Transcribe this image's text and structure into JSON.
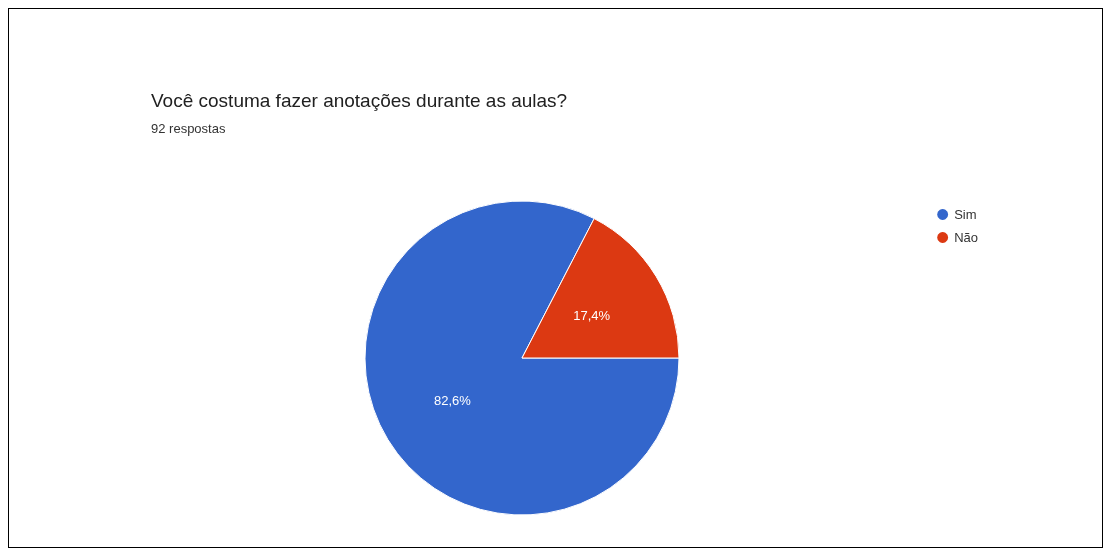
{
  "chart_data": {
    "type": "pie",
    "title": "Você costuma fazer anotações durante as aulas?",
    "subtitle": "92 respostas",
    "categories": [
      "Sim",
      "Não"
    ],
    "values": [
      82.6,
      17.4
    ],
    "colors": [
      "#3366cc",
      "#dc3912"
    ],
    "value_labels": [
      "82,6%",
      "17,4%"
    ],
    "legend": "top right"
  }
}
